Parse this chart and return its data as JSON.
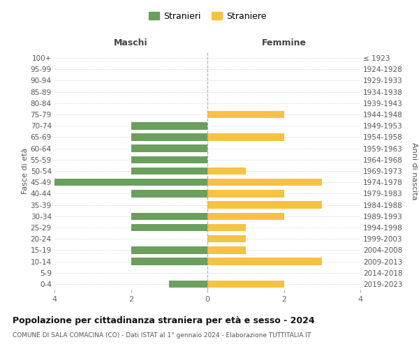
{
  "age_groups": [
    "0-4",
    "5-9",
    "10-14",
    "15-19",
    "20-24",
    "25-29",
    "30-34",
    "35-39",
    "40-44",
    "45-49",
    "50-54",
    "55-59",
    "60-64",
    "65-69",
    "70-74",
    "75-79",
    "80-84",
    "85-89",
    "90-94",
    "95-99",
    "100+"
  ],
  "birth_years": [
    "2019-2023",
    "2014-2018",
    "2009-2013",
    "2004-2008",
    "1999-2003",
    "1994-1998",
    "1989-1993",
    "1984-1988",
    "1979-1983",
    "1974-1978",
    "1969-1973",
    "1964-1968",
    "1959-1963",
    "1954-1958",
    "1949-1953",
    "1944-1948",
    "1939-1943",
    "1934-1938",
    "1929-1933",
    "1924-1928",
    "≤ 1923"
  ],
  "maschi": [
    1,
    0,
    2,
    2,
    0,
    2,
    2,
    0,
    2,
    4,
    2,
    2,
    2,
    2,
    2,
    0,
    0,
    0,
    0,
    0,
    0
  ],
  "femmine": [
    2,
    0,
    3,
    1,
    1,
    1,
    2,
    3,
    2,
    3,
    1,
    0,
    0,
    2,
    0,
    2,
    0,
    0,
    0,
    0,
    0
  ],
  "color_maschi": "#6a9f5e",
  "color_femmine": "#f5c242",
  "title": "Popolazione per cittadinanza straniera per età e sesso - 2024",
  "subtitle": "COMUNE DI SALA COMACINA (CO) - Dati ISTAT al 1° gennaio 2024 - Elaborazione TUTTITALIA.IT",
  "xlabel_left": "Maschi",
  "xlabel_right": "Femmine",
  "ylabel_left": "Fasce di età",
  "ylabel_right": "Anni di nascita",
  "legend_maschi": "Stranieri",
  "legend_femmine": "Straniere",
  "xlim": 4,
  "grid_color": "#cccccc",
  "bar_height": 0.65
}
